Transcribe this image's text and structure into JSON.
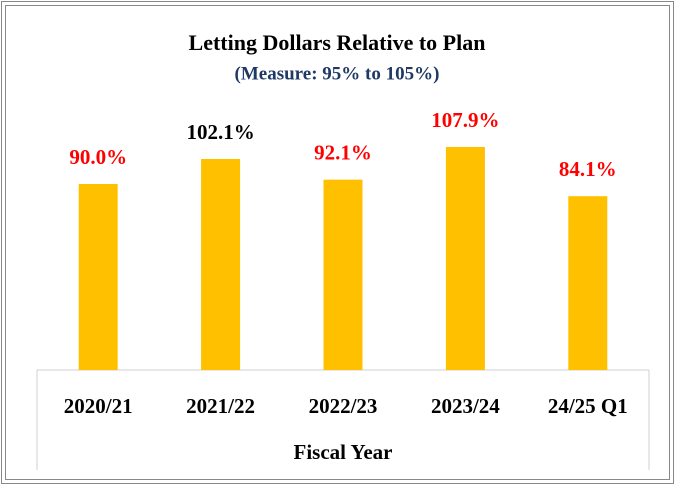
{
  "chart_data": {
    "type": "bar",
    "title": "Letting Dollars Relative to Plan",
    "subtitle": "(Measure: 95% to 105%)",
    "x_label": "Fiscal Year",
    "categories": [
      "2020/21",
      "2021/22",
      "2022/23",
      "2023/24",
      "24/25 Q1"
    ],
    "values": [
      90.0,
      102.1,
      92.1,
      107.9,
      84.1
    ],
    "value_labels": [
      "90.0%",
      "102.1%",
      "92.1%",
      "107.9%",
      "84.1%"
    ],
    "value_label_colors": [
      "#ff0000",
      "#000000",
      "#ff0000",
      "#ff0000",
      "#ff0000"
    ],
    "color": "#ffc000",
    "ylim": [
      0,
      120
    ]
  }
}
